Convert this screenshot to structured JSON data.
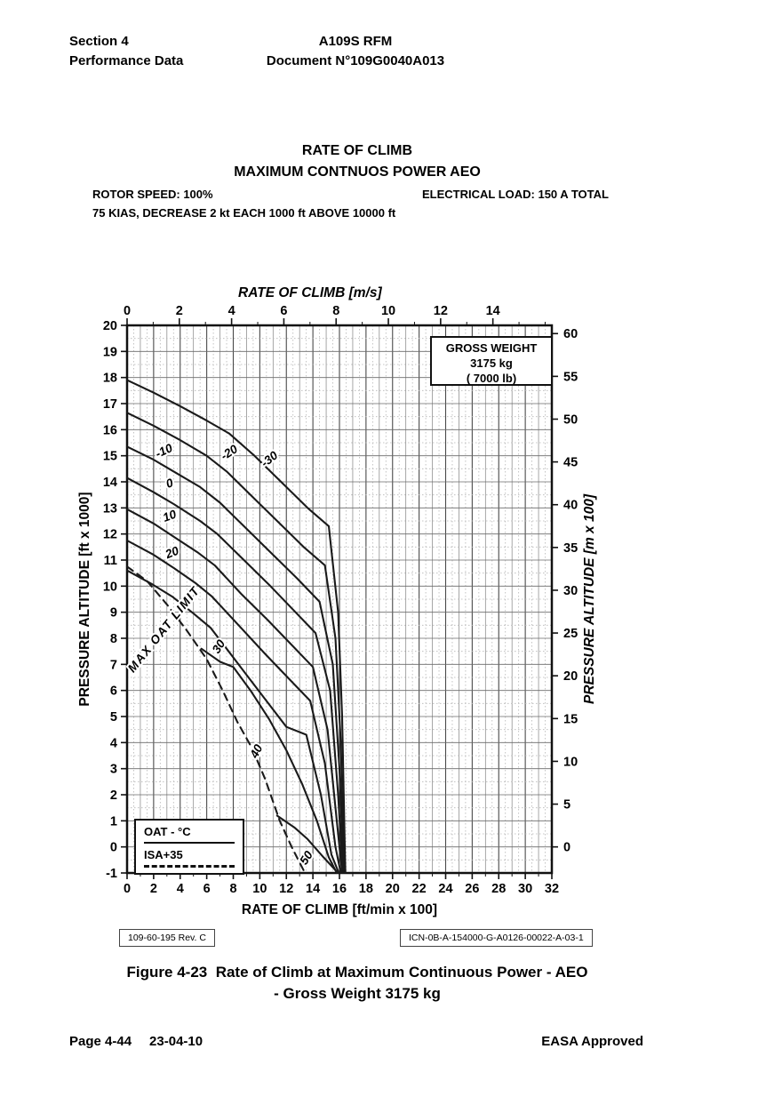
{
  "page": {
    "header": {
      "section": "Section 4",
      "subsection": "Performance Data",
      "doc_title": "A109S RFM",
      "doc_number": "Document N°109G0040A013"
    },
    "title_block": {
      "title": "RATE OF CLIMB",
      "subtitle": "MAXIMUM CONTNUOS POWER AEO",
      "rotor_speed": "ROTOR SPEED: 100%",
      "electrical_load": "ELECTRICAL LOAD:  150 A TOTAL",
      "condition": "75 KIAS, DECREASE 2 kt EACH 1000 ft ABOVE 10000 ft"
    },
    "ref_left": "109-60-195 Rev. C",
    "ref_right": "ICN-0B-A-154000-G-A0126-00022-A-03-1",
    "caption": {
      "label": "Figure 4-23",
      "line1_text": "Rate of Climb at Maximum Continuous Power - AEO",
      "line2": "- Gross Weight 3175 kg"
    },
    "footer": {
      "page": "Page 4-44",
      "date": "23-04-10",
      "approval": "EASA Approved"
    }
  },
  "chart_data": {
    "type": "line",
    "title": "RATE OF CLIMB - MAXIMUM CONTINUOUS POWER AEO - GROSS WEIGHT 3175 kg",
    "x_bottom": {
      "label": "RATE OF CLIMB [ft/min x 100]",
      "min": 0,
      "max": 32,
      "major_step": 2,
      "minor_step": 1
    },
    "x_top": {
      "label": "RATE OF CLIMB [m/s]",
      "ticks_labeled": [
        0,
        2,
        4,
        6,
        8,
        10,
        12,
        14
      ],
      "minor_max": 16,
      "units_per_ms": 1.9685
    },
    "y_left": {
      "label": "PRESSURE ALTITUDE [ft x 1000]",
      "min": -1,
      "max": 20,
      "major_step": 1,
      "minor_step": 0.5
    },
    "y_right": {
      "label": "PRESSURE ALTITUDE [m x 100]",
      "ticks": [
        0,
        5,
        10,
        15,
        20,
        25,
        30,
        35,
        40,
        45,
        50,
        55,
        60
      ],
      "kft_per_unit": 0.32808
    },
    "grid": {
      "major_every_x": 2,
      "minor_every_x": 1,
      "dotted_every": 0.5,
      "on": true
    },
    "legend_position": "in-plot boxes",
    "gross_weight_box": [
      "GROSS WEIGHT",
      "3175 kg",
      "( 7000 lb)"
    ],
    "oat_legend": {
      "line1": "OAT - °C",
      "line2": "ISA+35"
    },
    "series": [
      {
        "name": "-30",
        "oat_c": -30,
        "style": "solid",
        "points": [
          [
            0,
            17.9
          ],
          [
            2,
            17.42
          ],
          [
            4,
            16.9
          ],
          [
            6,
            16.35
          ],
          [
            7.7,
            15.85
          ],
          [
            9.6,
            15.0
          ],
          [
            11.6,
            14.0
          ],
          [
            13.6,
            13.0
          ],
          [
            15.2,
            12.3
          ],
          [
            15.9,
            9.0
          ],
          [
            16.2,
            5.0
          ],
          [
            16.4,
            0.0
          ],
          [
            16.45,
            -1
          ]
        ]
      },
      {
        "name": "-20",
        "oat_c": -20,
        "style": "solid",
        "points": [
          [
            0,
            16.65
          ],
          [
            2,
            16.15
          ],
          [
            4,
            15.6
          ],
          [
            6,
            15.0
          ],
          [
            7.5,
            14.4
          ],
          [
            9.5,
            13.4
          ],
          [
            11.5,
            12.4
          ],
          [
            13.3,
            11.5
          ],
          [
            14.9,
            10.8
          ],
          [
            15.7,
            8.0
          ],
          [
            16.1,
            4.0
          ],
          [
            16.35,
            -1
          ]
        ]
      },
      {
        "name": "-10",
        "oat_c": -10,
        "style": "solid",
        "points": [
          [
            0,
            15.35
          ],
          [
            2,
            14.85
          ],
          [
            3.5,
            14.4
          ],
          [
            5.5,
            13.8
          ],
          [
            7,
            13.2
          ],
          [
            9,
            12.2
          ],
          [
            11,
            11.2
          ],
          [
            12.8,
            10.3
          ],
          [
            14.5,
            9.4
          ],
          [
            15.5,
            7.0
          ],
          [
            16.0,
            3.0
          ],
          [
            16.3,
            -1
          ]
        ]
      },
      {
        "name": "0",
        "oat_c": 0,
        "style": "solid",
        "points": [
          [
            0,
            14.15
          ],
          [
            2,
            13.6
          ],
          [
            3.5,
            13.15
          ],
          [
            5.5,
            12.5
          ],
          [
            6.8,
            12.0
          ],
          [
            8.8,
            11.0
          ],
          [
            10.8,
            10.0
          ],
          [
            12.5,
            9.1
          ],
          [
            14.2,
            8.2
          ],
          [
            15.3,
            6.0
          ],
          [
            15.9,
            2.0
          ],
          [
            16.25,
            -1
          ]
        ]
      },
      {
        "name": "10",
        "oat_c": 10,
        "style": "solid",
        "points": [
          [
            0,
            12.95
          ],
          [
            2,
            12.4
          ],
          [
            3.5,
            11.9
          ],
          [
            5.3,
            11.3
          ],
          [
            6.6,
            10.8
          ],
          [
            8.6,
            9.7
          ],
          [
            10.6,
            8.7
          ],
          [
            12.3,
            7.8
          ],
          [
            14.0,
            6.9
          ],
          [
            15.1,
            4.5
          ],
          [
            15.8,
            1.0
          ],
          [
            16.2,
            -1
          ]
        ]
      },
      {
        "name": "20",
        "oat_c": 20,
        "style": "solid",
        "points": [
          [
            0,
            11.75
          ],
          [
            2,
            11.2
          ],
          [
            3.5,
            10.7
          ],
          [
            5.2,
            10.1
          ],
          [
            6.4,
            9.6
          ],
          [
            8.4,
            8.5
          ],
          [
            10.4,
            7.4
          ],
          [
            12.1,
            6.5
          ],
          [
            13.8,
            5.6
          ],
          [
            14.9,
            3.2
          ],
          [
            15.7,
            0.0
          ],
          [
            16.1,
            -1
          ]
        ]
      },
      {
        "name": "30",
        "oat_c": 30,
        "style": "solid",
        "points": [
          [
            0,
            10.6
          ],
          [
            1.8,
            10.1
          ],
          [
            3.4,
            9.6
          ],
          [
            5.0,
            8.95
          ],
          [
            6.3,
            8.4
          ],
          [
            7.5,
            7.6
          ],
          [
            9.0,
            6.6
          ],
          [
            10.5,
            5.6
          ],
          [
            12.0,
            4.6
          ],
          [
            13.5,
            4.3
          ],
          [
            14.6,
            2.0
          ],
          [
            15.4,
            -0.3
          ],
          [
            15.95,
            -1
          ]
        ]
      },
      {
        "name": "40",
        "oat_c": 40,
        "style": "solid",
        "points": [
          [
            5.6,
            7.6
          ],
          [
            7.0,
            7.1
          ],
          [
            8.0,
            6.9
          ],
          [
            9.3,
            6.0
          ],
          [
            10.7,
            4.9
          ],
          [
            12.0,
            3.7
          ],
          [
            13.2,
            2.4
          ],
          [
            14.3,
            1.0
          ],
          [
            15.2,
            -0.4
          ],
          [
            15.8,
            -1
          ]
        ]
      },
      {
        "name": "50",
        "oat_c": 50,
        "style": "solid",
        "points": [
          [
            11.3,
            1.2
          ],
          [
            12.6,
            0.75
          ],
          [
            13.6,
            0.3
          ],
          [
            14.8,
            -0.4
          ],
          [
            15.9,
            -1
          ]
        ]
      },
      {
        "name": "MAX OAT LIMIT (ISA+35)",
        "style": "dashed",
        "points": [
          [
            0,
            10.75
          ],
          [
            1.5,
            10.2
          ],
          [
            3.0,
            9.3
          ],
          [
            4.5,
            8.3
          ],
          [
            6.0,
            7.2
          ],
          [
            7.2,
            6.0
          ],
          [
            8.3,
            4.8
          ],
          [
            9.4,
            3.8
          ],
          [
            10.4,
            2.6
          ],
          [
            11.5,
            1.0
          ],
          [
            12.4,
            0.0
          ],
          [
            13.4,
            -1
          ]
        ]
      }
    ],
    "curve_labels": [
      {
        "text": "-10",
        "x": 2.9,
        "alt": 15.05,
        "rot": -25
      },
      {
        "text": "-20",
        "x": 7.85,
        "alt": 15.0,
        "rot": -33
      },
      {
        "text": "-30",
        "x": 10.9,
        "alt": 14.75,
        "rot": -38
      },
      {
        "text": "0",
        "x": 3.3,
        "alt": 13.8,
        "rot": -20
      },
      {
        "text": "10",
        "x": 3.3,
        "alt": 12.55,
        "rot": -20
      },
      {
        "text": "20",
        "x": 3.5,
        "alt": 11.15,
        "rot": -22
      },
      {
        "text": "30",
        "x": 7.15,
        "alt": 7.6,
        "rot": -57
      },
      {
        "text": "40",
        "x": 10.0,
        "alt": 3.6,
        "rot": -63
      },
      {
        "text": "50",
        "x": 13.75,
        "alt": -0.5,
        "rot": -57
      },
      {
        "text": "MAX OAT LIMIT",
        "x": 3.0,
        "alt": 8.25,
        "rot": -51,
        "spaced": true
      }
    ],
    "colors": {
      "ink": "#1a1a1a",
      "grid_major": "#4a4a4a",
      "grid_minor": "#8a8a8a",
      "grid_dotted": "#b5b5b5",
      "paper": "#ffffff"
    }
  }
}
